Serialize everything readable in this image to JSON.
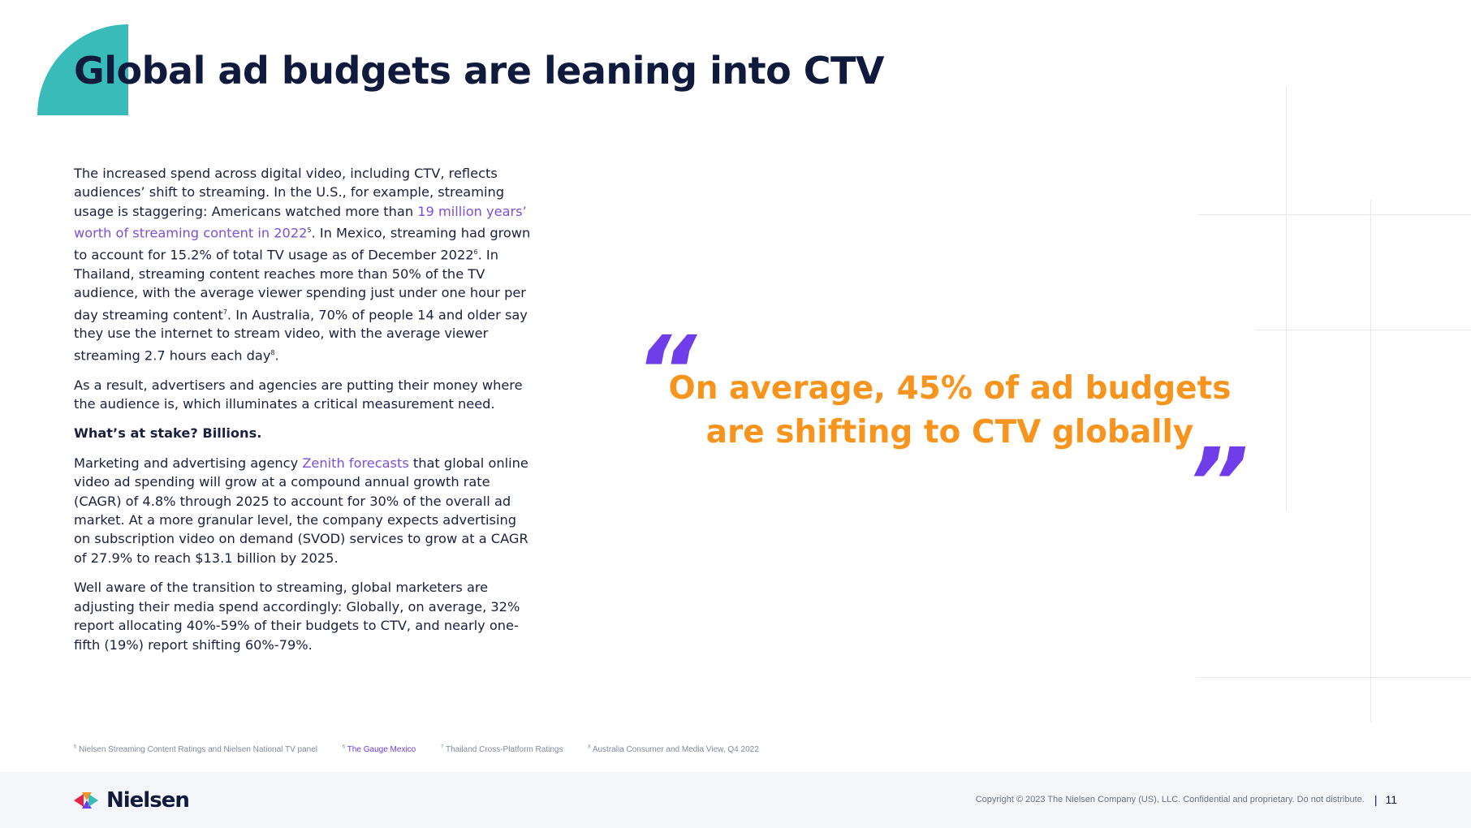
{
  "title": "Global ad budgets are leaning into CTV",
  "body": {
    "p1": {
      "part1": "The increased spend across digital video, including CTV, reflects audiences’ shift to streaming. In the U.S., for example, streaming usage is staggering: Americans watched more than ",
      "link": "19 million years’ worth of streaming content in 2022",
      "sup1": "5",
      "part2": ". In Mexico, streaming had grown to account for 15.2% of total TV usage as of December 2022",
      "sup2": "6",
      "part3": ". In Thailand, streaming content reaches more than 50% of the TV audience, with the average viewer spending just under one hour per day streaming content",
      "sup3": "7",
      "part4": ". In Australia, 70% of people 14 and older say they use the internet to stream video, with the average viewer streaming 2.7 hours each day",
      "sup4": "8",
      "part5": "."
    },
    "p2": "As a result, advertisers and agencies are putting their money where the audience is, which illuminates a critical measurement need.",
    "p3": "What’s at stake? Billions.",
    "p4": {
      "part1": "Marketing and advertising agency ",
      "link": "Zenith forecasts",
      "part2": " that global online video ad spending will grow at a compound annual growth rate (CAGR) of 4.8% through 2025 to account for 30% of the overall ad market. At a more granular level, the company expects advertising on subscription video on demand (SVOD) services to grow at a CAGR of 27.9% to reach $13.1 billion by 2025."
    },
    "p5": "Well aware of the transition to streaming, global marketers are adjusting their media spend accordingly: Globally, on average, 32% report allocating 40%-59% of their budgets to CTV, and nearly one-fifth (19%) report shifting 60%-79%."
  },
  "quote": {
    "open_mark": "“",
    "line1": "On average, 45% of ad budgets",
    "line2": "are shifting to CTV globally",
    "close_mark": "”"
  },
  "footnotes": [
    {
      "num": "5",
      "text": "Nielsen Streaming Content Ratings and Nielsen National TV panel"
    },
    {
      "num": "6",
      "text": "The Gauge Mexico"
    },
    {
      "num": "7",
      "text": "Thailand Cross-Platform Ratings"
    },
    {
      "num": "8",
      "text": "Australia Consumer and Media View, Q4 2022"
    }
  ],
  "footer": {
    "logo_text": "Nielsen",
    "copyright": "Copyright © 2023 The Nielsen Company (US), LLC. Confidential and proprietary. Do not distribute.",
    "separator": "|",
    "page_number": "11"
  },
  "colors": {
    "accent_teal": "#39bcb9",
    "accent_purple": "#6f3dea",
    "accent_orange": "#f7941d",
    "text_navy": "#0f1a3d"
  }
}
